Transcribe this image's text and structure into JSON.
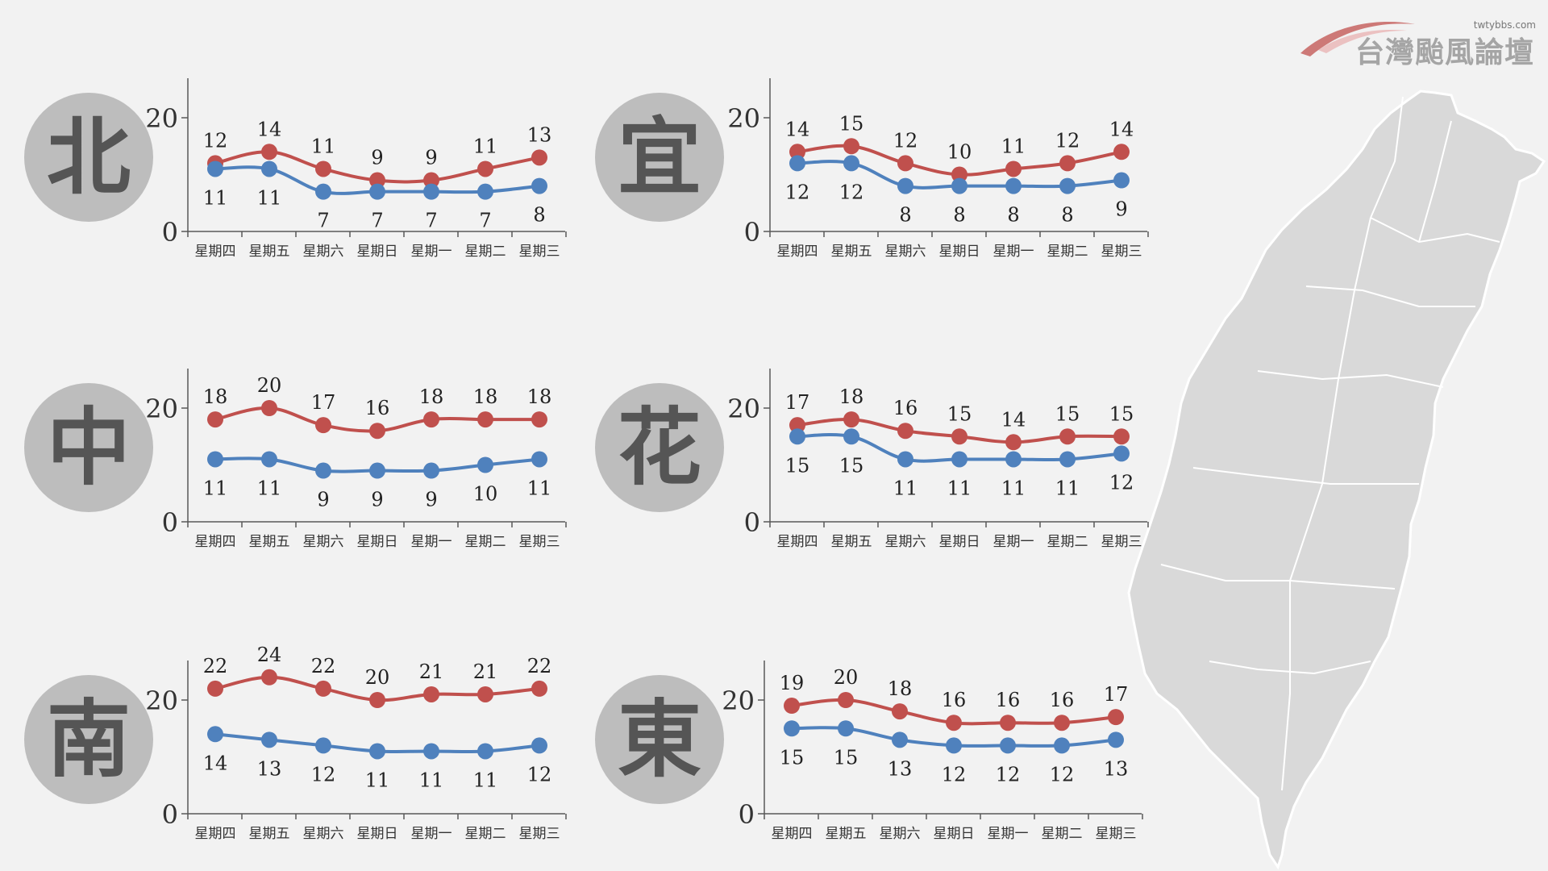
{
  "logo": {
    "site": "twtybbs.com",
    "name": "台灣颱風論壇"
  },
  "colors": {
    "high": "#c0504d",
    "low": "#4f81bd",
    "axis": "#595959",
    "map": "#d9d9d9"
  },
  "chart_data": [
    {
      "type": "line",
      "region": "北",
      "categories": [
        "星期四",
        "星期五",
        "星期六",
        "星期日",
        "星期一",
        "星期二",
        "星期三"
      ],
      "series": [
        {
          "values": [
            12,
            14,
            11,
            9,
            9,
            11,
            13
          ]
        },
        {
          "values": [
            11,
            11,
            7,
            7,
            7,
            7,
            8
          ]
        }
      ],
      "yticks": [
        "0",
        "20"
      ],
      "ylim": [
        0,
        27
      ]
    },
    {
      "type": "line",
      "region": "宜",
      "categories": [
        "星期四",
        "星期五",
        "星期六",
        "星期日",
        "星期一",
        "星期二",
        "星期三"
      ],
      "series": [
        {
          "values": [
            14,
            15,
            12,
            10,
            11,
            12,
            14
          ]
        },
        {
          "values": [
            12,
            12,
            8,
            8,
            8,
            8,
            9
          ]
        }
      ],
      "yticks": [
        "0",
        "20"
      ],
      "ylim": [
        0,
        27
      ]
    },
    {
      "type": "line",
      "region": "中",
      "categories": [
        "星期四",
        "星期五",
        "星期六",
        "星期日",
        "星期一",
        "星期二",
        "星期三"
      ],
      "series": [
        {
          "values": [
            18,
            20,
            17,
            16,
            18,
            18,
            18
          ]
        },
        {
          "values": [
            11,
            11,
            9,
            9,
            9,
            10,
            11
          ]
        }
      ],
      "yticks": [
        "0",
        "20"
      ],
      "ylim": [
        0,
        27
      ]
    },
    {
      "type": "line",
      "region": "花",
      "categories": [
        "星期四",
        "星期五",
        "星期六",
        "星期日",
        "星期一",
        "星期二",
        "星期三"
      ],
      "series": [
        {
          "values": [
            17,
            18,
            16,
            15,
            14,
            15,
            15
          ]
        },
        {
          "values": [
            15,
            15,
            11,
            11,
            11,
            11,
            12
          ]
        }
      ],
      "yticks": [
        "0",
        "20"
      ],
      "ylim": [
        0,
        27
      ]
    },
    {
      "type": "line",
      "region": "南",
      "categories": [
        "星期四",
        "星期五",
        "星期六",
        "星期日",
        "星期一",
        "星期二",
        "星期三"
      ],
      "series": [
        {
          "values": [
            22,
            24,
            22,
            20,
            21,
            21,
            22
          ]
        },
        {
          "values": [
            14,
            13,
            12,
            11,
            11,
            11,
            12
          ]
        }
      ],
      "yticks": [
        "0",
        "20"
      ],
      "ylim": [
        0,
        27
      ]
    },
    {
      "type": "line",
      "region": "東",
      "categories": [
        "星期四",
        "星期五",
        "星期六",
        "星期日",
        "星期一",
        "星期二",
        "星期三"
      ],
      "series": [
        {
          "values": [
            19,
            20,
            18,
            16,
            16,
            16,
            17
          ]
        },
        {
          "values": [
            15,
            15,
            13,
            12,
            12,
            12,
            13
          ]
        }
      ],
      "yticks": [
        "0",
        "20"
      ],
      "ylim": [
        0,
        27
      ]
    }
  ]
}
